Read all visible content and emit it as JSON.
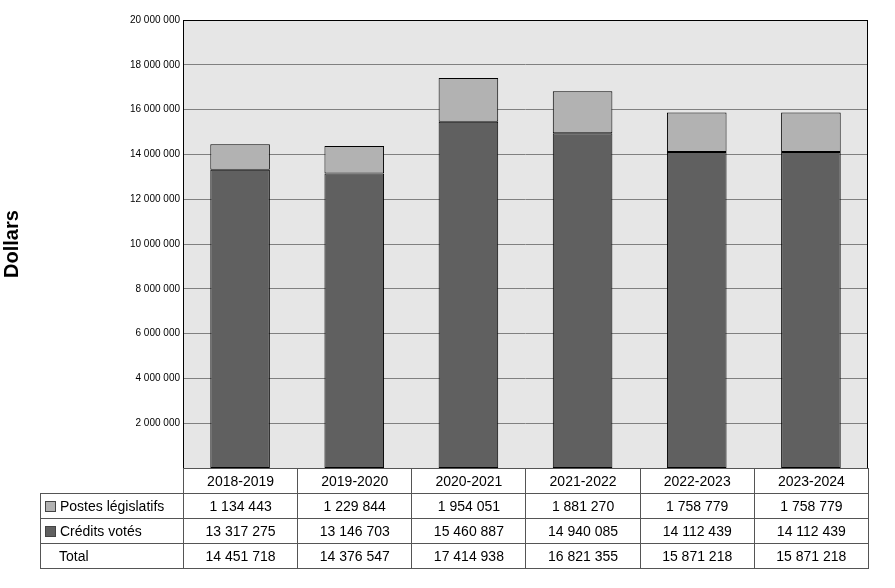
{
  "chart_data": {
    "type": "bar",
    "stacked": true,
    "y_label": "Dollars",
    "categories": [
      "2018-2019",
      "2019-2020",
      "2020-2021",
      "2021-2022",
      "2022-2023",
      "2023-2024"
    ],
    "series": [
      {
        "name": "Postes législatifs",
        "color": "#b2b2b2",
        "values": [
          1134443,
          1229844,
          1954051,
          1881270,
          1758779,
          1758779
        ],
        "value_labels": [
          "1 134 443",
          "1 229 844",
          "1 954 051",
          "1 881 270",
          "1 758 779",
          "1 758 779"
        ]
      },
      {
        "name": "Crédits votés",
        "color": "#606060",
        "values": [
          13317275,
          13146703,
          15460887,
          14940085,
          14112439,
          14112439
        ],
        "value_labels": [
          "13 317 275",
          "13 146 703",
          "15 460 887",
          "14 940 085",
          "14 112 439",
          "14 112 439"
        ]
      }
    ],
    "total": {
      "name": "Total",
      "values": [
        14451718,
        14376547,
        17414938,
        16821355,
        15871218,
        15871218
      ],
      "value_labels": [
        "14 451 718",
        "14 376 547",
        "17 414 938",
        "16 821 355",
        "15 871 218",
        "15 871 218"
      ]
    },
    "ylim": [
      0,
      20000000
    ],
    "yticks": [
      {
        "value": 2000000,
        "label": "2 000 000"
      },
      {
        "value": 4000000,
        "label": "4 000 000"
      },
      {
        "value": 6000000,
        "label": "6 000 000"
      },
      {
        "value": 8000000,
        "label": "8 000 000"
      },
      {
        "value": 10000000,
        "label": "10 000 000"
      },
      {
        "value": 12000000,
        "label": "12 000 000"
      },
      {
        "value": 14000000,
        "label": "14 000 000"
      },
      {
        "value": 16000000,
        "label": "16 000 000"
      },
      {
        "value": 18000000,
        "label": "18 000 000"
      },
      {
        "value": 20000000,
        "label": "20 000 000"
      }
    ],
    "grid": true
  }
}
